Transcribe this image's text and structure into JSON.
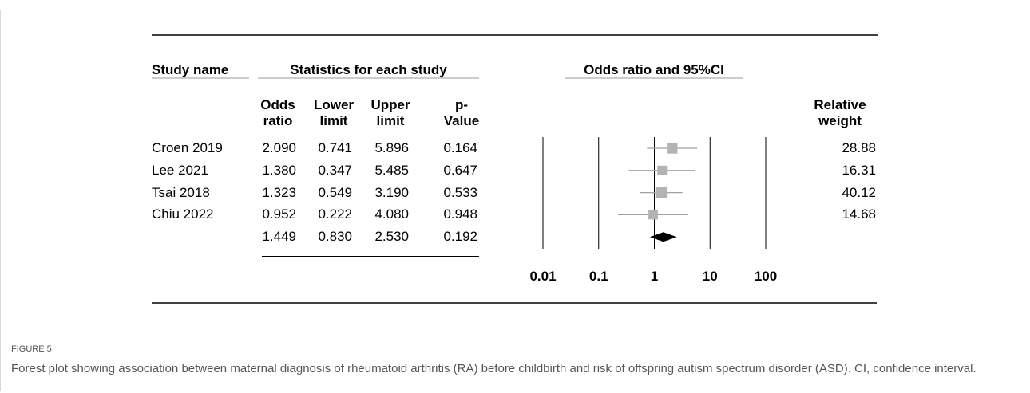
{
  "figure_label": "FIGURE 5",
  "caption": "Forest plot showing association between maternal diagnosis of rheumatoid arthritis (RA) before childbirth and risk of offspring autism spectrum disorder (ASD). CI, confidence interval.",
  "chart_data": {
    "type": "forest",
    "headers": {
      "study": "Study name",
      "statistics": "Statistics for each study",
      "plot": "Odds ratio and 95%CI"
    },
    "categories": [
      "Croen 2019",
      "Lee 2021",
      "Tsai 2018",
      "Chiu 2022",
      null
    ],
    "series": [
      {
        "name": "Odds ratio",
        "values": [
          2.09,
          1.38,
          1.323,
          0.952,
          1.449
        ],
        "value_labels": [
          "2.090",
          "1.380",
          "1.323",
          "0.952",
          "1.449"
        ]
      },
      {
        "name": "Lower limit",
        "values": [
          0.741,
          0.347,
          0.549,
          0.222,
          0.83
        ],
        "value_labels": [
          "0.741",
          "0.347",
          "0.549",
          "0.222",
          "0.830"
        ]
      },
      {
        "name": "Upper limit",
        "values": [
          5.896,
          5.485,
          3.19,
          4.08,
          2.53
        ],
        "value_labels": [
          "5.896",
          "5.485",
          "3.190",
          "4.080",
          "2.530"
        ]
      },
      {
        "name": "p-Value",
        "values": [
          0.164,
          0.647,
          0.533,
          0.948,
          0.192
        ]
      },
      {
        "name": "Relative weight",
        "values": [
          28.88,
          16.31,
          40.12,
          14.68,
          null
        ]
      }
    ],
    "marker_color": "#b3b3b3",
    "line_color": "#a0a0a0",
    "summary_color": "#000000",
    "log_x": true,
    "xlim": [
      0.01,
      100
    ],
    "xticks": [
      0.01,
      0.1,
      1,
      10,
      100
    ]
  }
}
